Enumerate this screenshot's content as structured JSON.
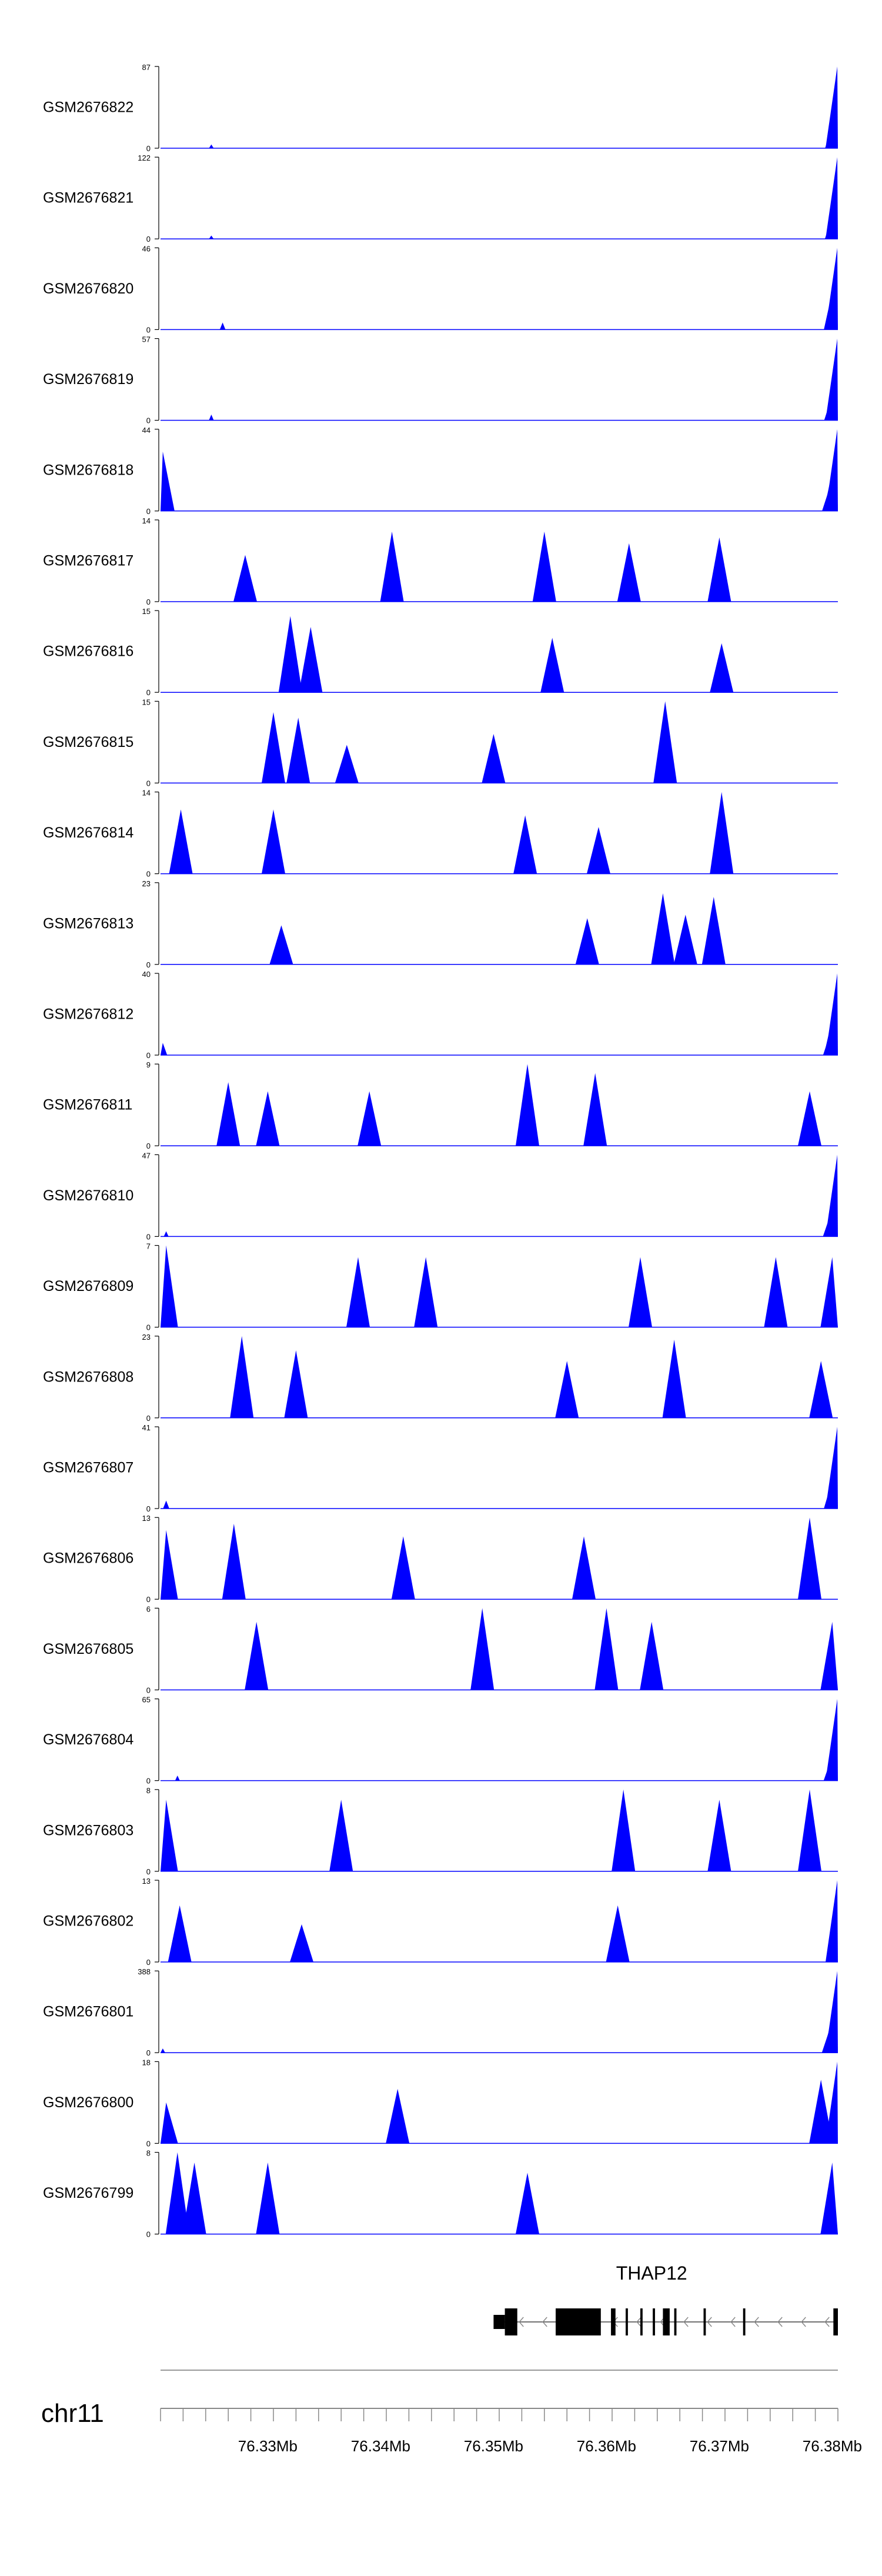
{
  "chart_data": {
    "type": "area",
    "chromosome": "chr11",
    "xlim": [
      76.3205,
      76.3805
    ],
    "x_unit": "Mb",
    "x_ticks": [
      76.33,
      76.34,
      76.35,
      76.36,
      76.37,
      76.38
    ],
    "x_tick_labels": [
      "76.33Mb",
      "76.34Mb",
      "76.35Mb",
      "76.36Mb",
      "76.37Mb",
      "76.38Mb"
    ],
    "fill_color": "#0000ff",
    "grid": false,
    "legend": "none",
    "tracks": [
      {
        "name": "GSM2676822",
        "ymax": 87,
        "ymax_label": "87",
        "ymin_label": "0",
        "peaks": [
          [
            76.3807,
            87
          ],
          [
            76.3803,
            35
          ],
          [
            76.3799,
            10
          ],
          [
            76.325,
            4
          ]
        ]
      },
      {
        "name": "GSM2676821",
        "ymax": 122,
        "ymax_label": "122",
        "ymin_label": "0",
        "peaks": [
          [
            76.3807,
            122
          ],
          [
            76.3803,
            50
          ],
          [
            76.3799,
            12
          ],
          [
            76.325,
            5
          ]
        ]
      },
      {
        "name": "GSM2676820",
        "ymax": 46,
        "ymax_label": "46",
        "ymin_label": "0",
        "peaks": [
          [
            76.3807,
            46
          ],
          [
            76.3803,
            30
          ],
          [
            76.3799,
            10
          ],
          [
            76.326,
            4
          ]
        ]
      },
      {
        "name": "GSM2676819",
        "ymax": 57,
        "ymax_label": "57",
        "ymin_label": "0",
        "peaks": [
          [
            76.3807,
            57
          ],
          [
            76.3803,
            25
          ],
          [
            76.3799,
            8
          ],
          [
            76.325,
            4
          ]
        ]
      },
      {
        "name": "GSM2676818",
        "ymax": 44,
        "ymax_label": "44",
        "ymin_label": "0",
        "peaks": [
          [
            76.3807,
            44
          ],
          [
            76.3803,
            30
          ],
          [
            76.3799,
            15
          ],
          [
            76.3207,
            32
          ],
          [
            76.3212,
            8
          ]
        ]
      },
      {
        "name": "GSM2676817",
        "ymax": 14,
        "ymax_label": "14",
        "ymin_label": "0",
        "peaks": [
          [
            76.328,
            8
          ],
          [
            76.341,
            12
          ],
          [
            76.3545,
            12
          ],
          [
            76.362,
            10
          ],
          [
            76.37,
            11
          ]
        ]
      },
      {
        "name": "GSM2676816",
        "ymax": 15,
        "ymax_label": "15",
        "ymin_label": "0",
        "peaks": [
          [
            76.332,
            14
          ],
          [
            76.3338,
            12
          ],
          [
            76.3552,
            10
          ],
          [
            76.3702,
            9
          ]
        ]
      },
      {
        "name": "GSM2676815",
        "ymax": 15,
        "ymax_label": "15",
        "ymin_label": "0",
        "peaks": [
          [
            76.3305,
            13
          ],
          [
            76.3327,
            12
          ],
          [
            76.337,
            7
          ],
          [
            76.35,
            9
          ],
          [
            76.3652,
            15
          ]
        ]
      },
      {
        "name": "GSM2676814",
        "ymax": 14,
        "ymax_label": "14",
        "ymin_label": "0",
        "peaks": [
          [
            76.3223,
            11
          ],
          [
            76.3305,
            11
          ],
          [
            76.3528,
            10
          ],
          [
            76.3593,
            8
          ],
          [
            76.3702,
            14
          ]
        ]
      },
      {
        "name": "GSM2676813",
        "ymax": 23,
        "ymax_label": "23",
        "ymin_label": "0",
        "peaks": [
          [
            76.3312,
            11
          ],
          [
            76.3583,
            13
          ],
          [
            76.365,
            20
          ],
          [
            76.367,
            14
          ],
          [
            76.3695,
            19
          ]
        ]
      },
      {
        "name": "GSM2676812",
        "ymax": 40,
        "ymax_label": "40",
        "ymin_label": "0",
        "peaks": [
          [
            76.3807,
            40
          ],
          [
            76.3803,
            25
          ],
          [
            76.3799,
            12
          ],
          [
            76.3207,
            6
          ]
        ]
      },
      {
        "name": "GSM2676811",
        "ymax": 9,
        "ymax_label": "9",
        "ymin_label": "0",
        "peaks": [
          [
            76.3265,
            7
          ],
          [
            76.33,
            6
          ],
          [
            76.339,
            6
          ],
          [
            76.353,
            9
          ],
          [
            76.359,
            8
          ],
          [
            76.378,
            6
          ]
        ]
      },
      {
        "name": "GSM2676810",
        "ymax": 47,
        "ymax_label": "47",
        "ymin_label": "0",
        "peaks": [
          [
            76.3807,
            47
          ],
          [
            76.3803,
            20
          ],
          [
            76.3797,
            10
          ],
          [
            76.321,
            3
          ]
        ]
      },
      {
        "name": "GSM2676809",
        "ymax": 7,
        "ymax_label": "7",
        "ymin_label": "0",
        "peaks": [
          [
            76.321,
            7
          ],
          [
            76.338,
            6
          ],
          [
            76.344,
            6
          ],
          [
            76.363,
            6
          ],
          [
            76.375,
            6
          ],
          [
            76.38,
            6
          ]
        ]
      },
      {
        "name": "GSM2676808",
        "ymax": 23,
        "ymax_label": "23",
        "ymin_label": "0",
        "peaks": [
          [
            76.3277,
            23
          ],
          [
            76.3325,
            19
          ],
          [
            76.3565,
            16
          ],
          [
            76.366,
            22
          ],
          [
            76.379,
            16
          ]
        ]
      },
      {
        "name": "GSM2676807",
        "ymax": 41,
        "ymax_label": "41",
        "ymin_label": "0",
        "peaks": [
          [
            76.3807,
            41
          ],
          [
            76.3803,
            20
          ],
          [
            76.3799,
            10
          ],
          [
            76.321,
            4
          ]
        ]
      },
      {
        "name": "GSM2676806",
        "ymax": 13,
        "ymax_label": "13",
        "ymin_label": "0",
        "peaks": [
          [
            76.321,
            11
          ],
          [
            76.327,
            12
          ],
          [
            76.342,
            10
          ],
          [
            76.358,
            10
          ],
          [
            76.378,
            13
          ]
        ]
      },
      {
        "name": "GSM2676805",
        "ymax": 6,
        "ymax_label": "6",
        "ymin_label": "0",
        "peaks": [
          [
            76.349,
            6
          ],
          [
            76.36,
            6
          ],
          [
            76.364,
            5
          ],
          [
            76.329,
            5
          ],
          [
            76.38,
            5
          ]
        ]
      },
      {
        "name": "GSM2676804",
        "ymax": 65,
        "ymax_label": "65",
        "ymin_label": "0",
        "peaks": [
          [
            76.3807,
            65
          ],
          [
            76.3803,
            25
          ],
          [
            76.3797,
            12
          ],
          [
            76.322,
            4
          ]
        ]
      },
      {
        "name": "GSM2676803",
        "ymax": 8,
        "ymax_label": "8",
        "ymin_label": "0",
        "peaks": [
          [
            76.321,
            7
          ],
          [
            76.3365,
            7
          ],
          [
            76.3615,
            8
          ],
          [
            76.37,
            7
          ],
          [
            76.378,
            8
          ]
        ]
      },
      {
        "name": "GSM2676802",
        "ymax": 13,
        "ymax_label": "13",
        "ymin_label": "0",
        "peaks": [
          [
            76.3807,
            13
          ],
          [
            76.3222,
            9
          ],
          [
            76.361,
            9
          ],
          [
            76.333,
            6
          ]
        ]
      },
      {
        "name": "GSM2676801",
        "ymax": 388,
        "ymax_label": "388",
        "ymin_label": "0",
        "peaks": [
          [
            76.3807,
            388
          ],
          [
            76.3803,
            250
          ],
          [
            76.3797,
            100
          ],
          [
            76.3207,
            20
          ]
        ]
      },
      {
        "name": "GSM2676800",
        "ymax": 18,
        "ymax_label": "18",
        "ymin_label": "0",
        "peaks": [
          [
            76.3807,
            18
          ],
          [
            76.3415,
            12
          ],
          [
            76.379,
            14
          ],
          [
            76.321,
            9
          ]
        ]
      },
      {
        "name": "GSM2676799",
        "ymax": 8,
        "ymax_label": "8",
        "ymin_label": "0",
        "peaks": [
          [
            76.322,
            8
          ],
          [
            76.3235,
            7
          ],
          [
            76.33,
            7
          ],
          [
            76.353,
            6
          ],
          [
            76.38,
            7
          ]
        ]
      }
    ],
    "gene_track": {
      "gene": "THAP12",
      "strand": "-",
      "intron_range": [
        76.3502,
        76.3807
      ],
      "exons": [
        [
          76.35,
          76.351,
          "utr"
        ],
        [
          76.351,
          76.3521,
          "cds"
        ],
        [
          76.3555,
          76.3595,
          "cds"
        ],
        [
          76.3604,
          76.3608,
          "cds"
        ],
        [
          76.3617,
          76.3619,
          "cds"
        ],
        [
          76.363,
          76.3632,
          "cds"
        ],
        [
          76.3641,
          76.3643,
          "cds"
        ],
        [
          76.365,
          76.3656,
          "cds"
        ],
        [
          76.366,
          76.3662,
          "cds"
        ],
        [
          76.3686,
          76.3688,
          "cds"
        ],
        [
          76.3721,
          76.3723,
          "cds"
        ],
        [
          76.3801,
          76.3807,
          "cds"
        ]
      ]
    }
  }
}
